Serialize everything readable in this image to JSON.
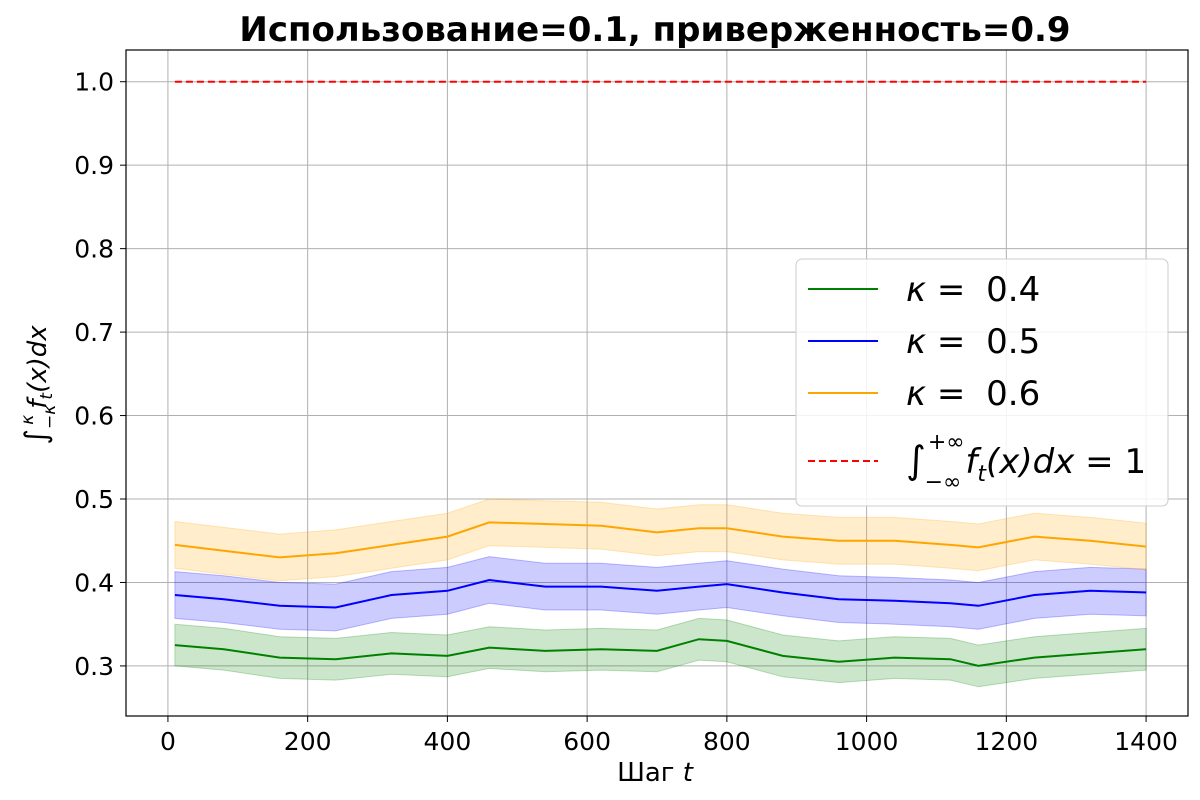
{
  "chart_data": {
    "type": "line",
    "title": "Использование=0.1, приверженность=0.9",
    "xlabel": "Шаг",
    "xlabel_var": "t",
    "ylabel": "∫_{-κ}^{κ} f_t(x)dx",
    "xlim": [
      -60,
      1460
    ],
    "ylim": [
      0.24,
      1.038
    ],
    "xticks": [
      0,
      200,
      400,
      600,
      800,
      1000,
      1200,
      1400
    ],
    "yticks": [
      0.3,
      0.4,
      0.5,
      0.6,
      0.7,
      0.8,
      0.9,
      1.0
    ],
    "xtick_labels": [
      "0",
      "200",
      "400",
      "600",
      "800",
      "1000",
      "1200",
      "1400"
    ],
    "ytick_labels": [
      "0.3",
      "0.4",
      "0.5",
      "0.6",
      "0.7",
      "0.8",
      "0.9",
      "1.0"
    ],
    "grid": true,
    "legend_position": "center-right",
    "x": [
      10,
      80,
      160,
      240,
      320,
      400,
      460,
      540,
      620,
      700,
      760,
      800,
      880,
      960,
      1040,
      1120,
      1160,
      1240,
      1320,
      1400
    ],
    "series": [
      {
        "name": "κ = 0.4",
        "legend_label": {
          "var": "κ",
          "eq": " = ",
          "num": "0.4"
        },
        "color": "#008000",
        "values": [
          0.325,
          0.32,
          0.31,
          0.308,
          0.315,
          0.312,
          0.322,
          0.318,
          0.32,
          0.318,
          0.332,
          0.33,
          0.312,
          0.305,
          0.31,
          0.308,
          0.3,
          0.31,
          0.315,
          0.32
        ],
        "band": [
          0.025,
          0.025,
          0.025,
          0.025,
          0.025,
          0.025,
          0.025,
          0.025,
          0.025,
          0.025,
          0.025,
          0.025,
          0.025,
          0.025,
          0.025,
          0.025,
          0.025,
          0.025,
          0.025,
          0.025
        ]
      },
      {
        "name": "κ = 0.5",
        "legend_label": {
          "var": "κ",
          "eq": " = ",
          "num": "0.5"
        },
        "color": "#0000ff",
        "values": [
          0.385,
          0.38,
          0.372,
          0.37,
          0.385,
          0.39,
          0.403,
          0.395,
          0.395,
          0.39,
          0.395,
          0.398,
          0.388,
          0.38,
          0.378,
          0.375,
          0.372,
          0.385,
          0.39,
          0.388
        ],
        "band": [
          0.028,
          0.028,
          0.028,
          0.028,
          0.028,
          0.028,
          0.028,
          0.028,
          0.028,
          0.028,
          0.028,
          0.028,
          0.028,
          0.028,
          0.028,
          0.028,
          0.028,
          0.028,
          0.028,
          0.028
        ]
      },
      {
        "name": "κ = 0.6",
        "legend_label": {
          "var": "κ",
          "eq": " = ",
          "num": "0.6"
        },
        "color": "#ffa500",
        "values": [
          0.445,
          0.438,
          0.43,
          0.435,
          0.445,
          0.455,
          0.472,
          0.47,
          0.468,
          0.46,
          0.465,
          0.465,
          0.455,
          0.45,
          0.45,
          0.445,
          0.442,
          0.455,
          0.45,
          0.443
        ],
        "band": [
          0.028,
          0.028,
          0.028,
          0.028,
          0.028,
          0.028,
          0.028,
          0.028,
          0.028,
          0.028,
          0.028,
          0.028,
          0.028,
          0.028,
          0.028,
          0.028,
          0.028,
          0.028,
          0.028,
          0.028
        ]
      },
      {
        "name": "∫_{-∞}^{+∞} f_t(x)dx = 1",
        "legend_label": {
          "integral": "∫",
          "sup": "+∞",
          "sub": "−∞",
          "body": "f",
          "body_sub": "t",
          "body_rest": "(x)dx",
          "eq": " = ",
          "num": "1"
        },
        "color": "#ff0000",
        "dashed": true,
        "x": [
          10,
          1400
        ],
        "values": [
          1.0,
          1.0
        ]
      }
    ]
  }
}
